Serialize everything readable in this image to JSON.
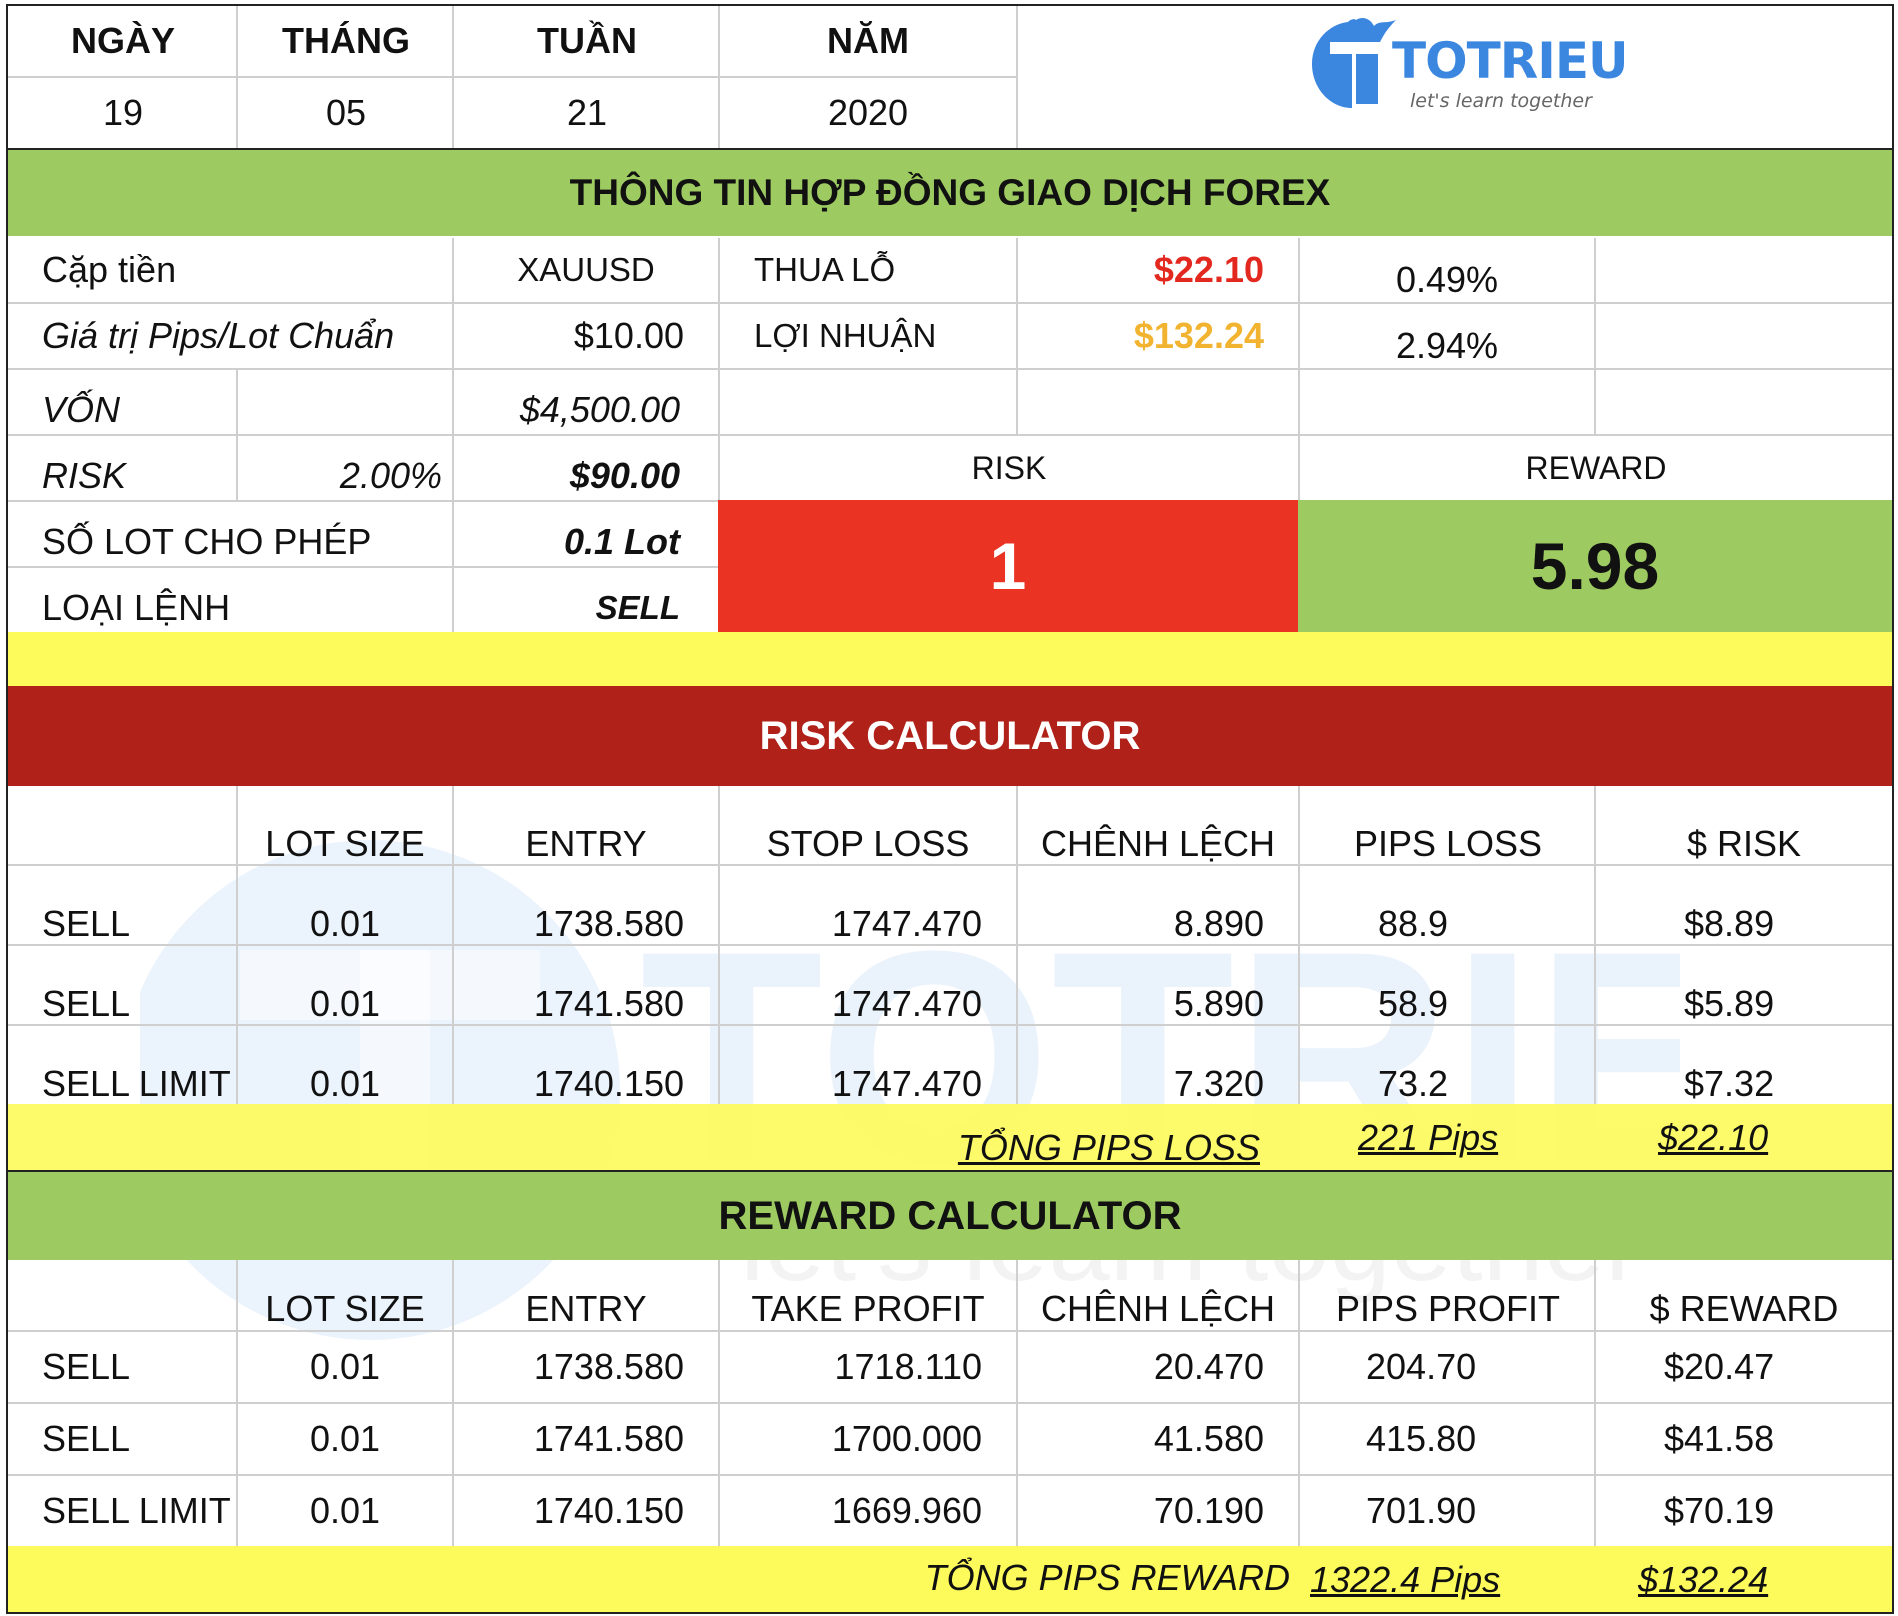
{
  "colors": {
    "green": "#9dcb61",
    "red_banner": "#b02219",
    "red_box": "#ea3323",
    "yellow": "#fdfb5c",
    "loss_red": "#e3281f",
    "profit_orange": "#f2b430",
    "logo_blue": "#3b87e0"
  },
  "date": {
    "headers": [
      "NGÀY",
      "THÁNG",
      "TUẦN",
      "NĂM"
    ],
    "values": [
      "19",
      "05",
      "21",
      "2020"
    ]
  },
  "logo": {
    "name": "TOTRIEU",
    "tagline": "let's learn together",
    "icon": "totrieu-flame-t-logo-icon"
  },
  "contract": {
    "title": "THÔNG TIN HỢP ĐỒNG GIAO DỊCH FOREX",
    "pair_label": "Cặp tiền",
    "pair_value": "XAUUSD",
    "pip_label": "Giá trị Pips/Lot Chuẩn",
    "pip_value": "$10.00",
    "loss_label": "THUA LỖ",
    "loss_value": "$22.10",
    "loss_pct": "0.49%",
    "profit_label": "LỢI NHUẬN",
    "profit_value": "$132.24",
    "profit_pct": "2.94%",
    "capital_label": "VỐN",
    "capital_value": "$4,500.00",
    "risk_label": "RISK",
    "risk_pct": "2.00%",
    "risk_value": "$90.00",
    "lot_label": "SỐ LOT CHO PHÉP",
    "lot_value": "0.1 Lot",
    "order_label": "LOẠI LỆNH",
    "order_value": "SELL",
    "ratio_risk_label": "RISK",
    "ratio_reward_label": "REWARD",
    "ratio_risk_value": "1",
    "ratio_reward_value": "5.98"
  },
  "risk_calc": {
    "title": "RISK CALCULATOR",
    "headers": [
      "",
      "LOT SIZE",
      "ENTRY",
      "STOP LOSS",
      "CHÊNH LỆCH",
      "PIPS LOSS",
      "$ RISK"
    ],
    "rows": [
      [
        "SELL",
        "0.01",
        "1738.580",
        "1747.470",
        "8.890",
        "88.9",
        "$8.89"
      ],
      [
        "SELL",
        "0.01",
        "1741.580",
        "1747.470",
        "5.890",
        "58.9",
        "$5.89"
      ],
      [
        "SELL LIMIT",
        "0.01",
        "1740.150",
        "1747.470",
        "7.320",
        "73.2",
        "$7.32"
      ]
    ],
    "total_label": "TỔNG PIPS LOSS",
    "total_pips": "221 Pips",
    "total_usd": "$22.10"
  },
  "reward_calc": {
    "title": "REWARD CALCULATOR",
    "headers": [
      "",
      "LOT SIZE",
      "ENTRY",
      "TAKE PROFIT",
      "CHÊNH LỆCH",
      "PIPS PROFIT",
      "$ REWARD"
    ],
    "rows": [
      [
        "SELL",
        "0.01",
        "1738.580",
        "1718.110",
        "20.470",
        "204.70",
        "$20.47"
      ],
      [
        "SELL",
        "0.01",
        "1741.580",
        "1700.000",
        "41.580",
        "415.80",
        "$41.58"
      ],
      [
        "SELL LIMIT",
        "0.01",
        "1740.150",
        "1669.960",
        "70.190",
        "701.90",
        "$70.19"
      ]
    ],
    "total_label": "TỔNG PIPS REWARD",
    "total_pips": "1322.4 Pips",
    "total_usd": "$132.24"
  }
}
